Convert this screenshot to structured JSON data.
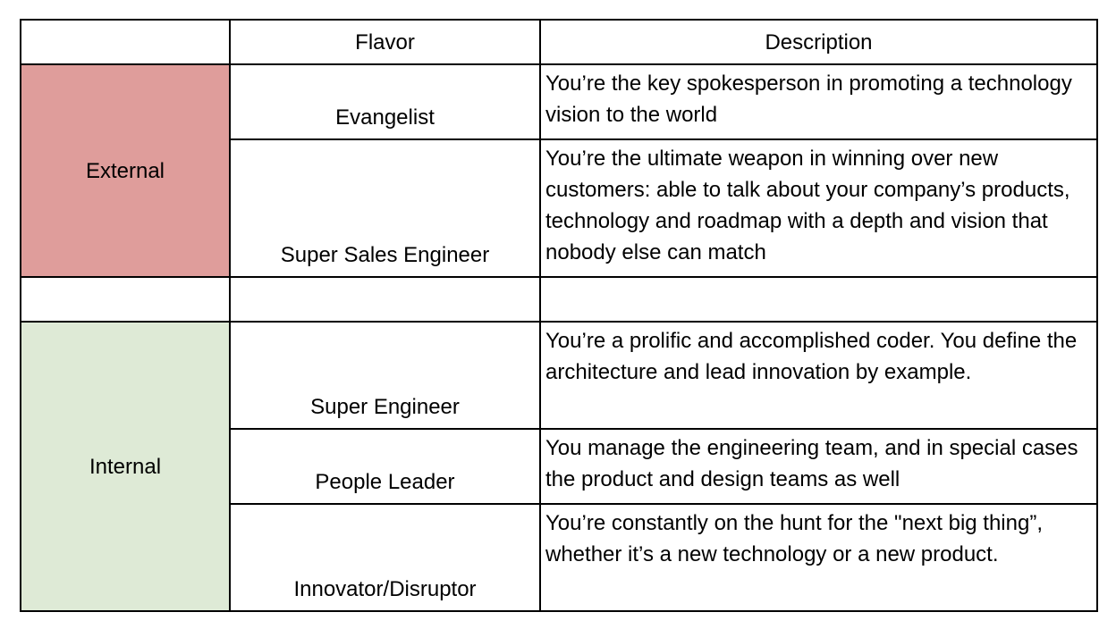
{
  "colors": {
    "external_fill": "#df9d9b",
    "internal_fill": "#deead6",
    "grid_line": "#000000"
  },
  "headers": {
    "category": "",
    "flavor": "Flavor",
    "description": "Description"
  },
  "groups": [
    {
      "label": "External",
      "rows": [
        {
          "flavor": "Evangelist",
          "description": "You’re the key spokesperson in promoting a technology vision to the world"
        },
        {
          "flavor": "Super Sales Engineer",
          "description": "You’re the ultimate weapon in winning over new customers: able to talk about your company’s products, technology and roadmap with a depth and vision that nobody else can match"
        }
      ]
    },
    {
      "label": "Internal",
      "rows": [
        {
          "flavor": "Super Engineer",
          "description": "You’re a prolific and accomplished coder. You define the architecture and lead innovation by example."
        },
        {
          "flavor": "People Leader",
          "description": "You manage the engineering team, and in special cases the product and design teams as well"
        },
        {
          "flavor": "Innovator/Disruptor",
          "description": "You’re constantly on the hunt for the \"next big thing”, whether it’s a new technology or a new product."
        }
      ]
    }
  ]
}
